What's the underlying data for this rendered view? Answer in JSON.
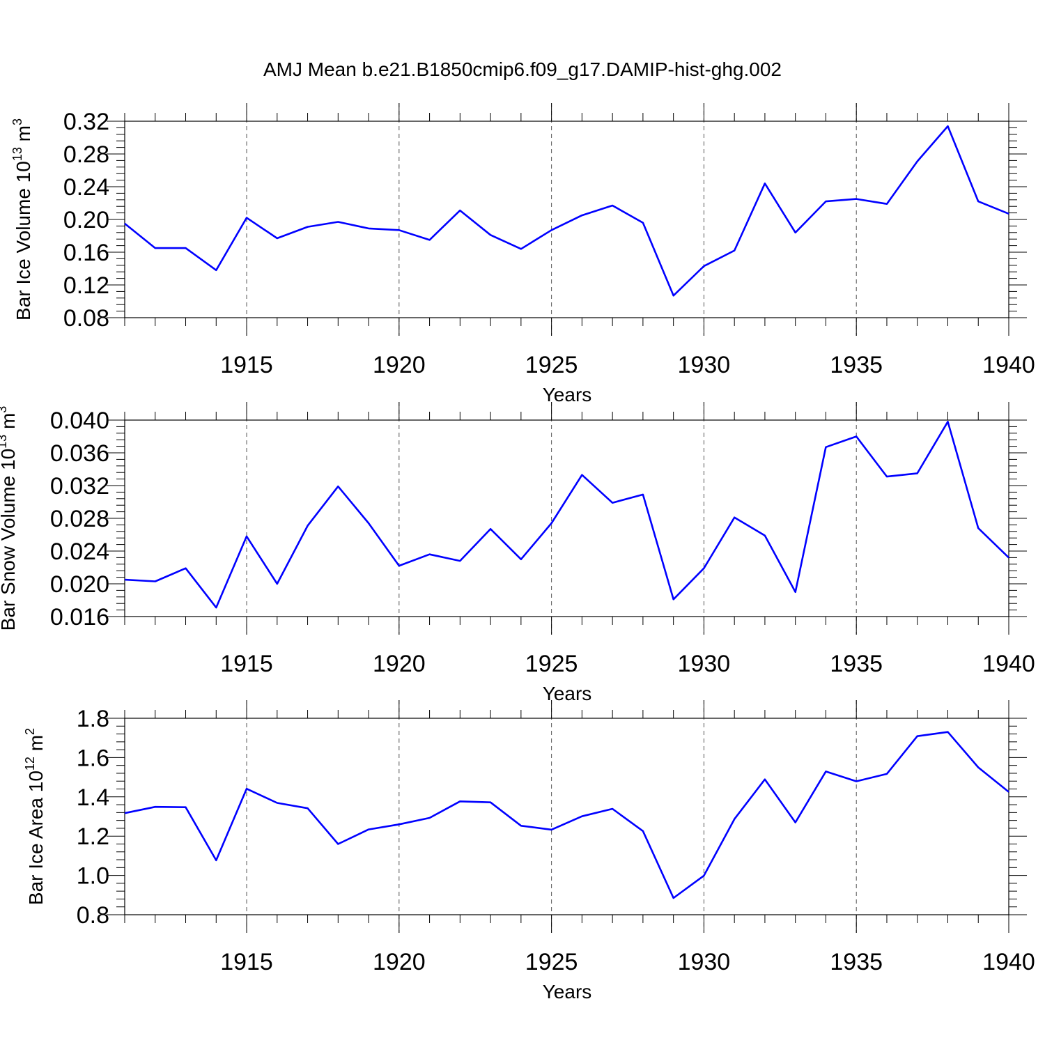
{
  "title": "AMJ Mean b.e21.B1850cmip6.f09_g17.DAMIP-hist-ghg.002",
  "colors": {
    "line": "#0000ff",
    "axis": "#000000",
    "grid": "#555555"
  },
  "chart_data": [
    {
      "type": "line",
      "ylabel": "Bar Ice Volume 10",
      "ylabel_exp": "13",
      "ylabel_unit": " m",
      "ylabel_unit_exp": "3",
      "xlabel": "Years",
      "xlim": [
        1911,
        1940
      ],
      "ylim": [
        0.08,
        0.32
      ],
      "x_ticks": [
        "1915",
        "1920",
        "1925",
        "1930",
        "1935",
        "1940"
      ],
      "y_ticks": [
        "0.08",
        "0.12",
        "0.16",
        "0.20",
        "0.24",
        "0.28",
        "0.32"
      ],
      "series": [
        {
          "name": "Bar Ice Volume",
          "x": [
            1911,
            1912,
            1913,
            1914,
            1915,
            1916,
            1917,
            1918,
            1919,
            1920,
            1921,
            1922,
            1923,
            1924,
            1925,
            1926,
            1927,
            1928,
            1929,
            1930,
            1931,
            1932,
            1933,
            1934,
            1935,
            1936,
            1937,
            1938,
            1939,
            1940
          ],
          "values": [
            0.195,
            0.165,
            0.165,
            0.138,
            0.202,
            0.177,
            0.191,
            0.197,
            0.189,
            0.187,
            0.175,
            0.211,
            0.181,
            0.164,
            0.187,
            0.205,
            0.217,
            0.196,
            0.107,
            0.143,
            0.162,
            0.244,
            0.184,
            0.222,
            0.225,
            0.219,
            0.271,
            0.314,
            0.222,
            0.207
          ]
        }
      ]
    },
    {
      "type": "line",
      "ylabel": "Bar Snow Volume 10",
      "ylabel_exp": "13",
      "ylabel_unit": " m",
      "ylabel_unit_exp": "3",
      "xlabel": "Years",
      "xlim": [
        1911,
        1940
      ],
      "ylim": [
        0.016,
        0.04
      ],
      "x_ticks": [
        "1915",
        "1920",
        "1925",
        "1930",
        "1935",
        "1940"
      ],
      "y_ticks": [
        "0.016",
        "0.020",
        "0.024",
        "0.028",
        "0.032",
        "0.036",
        "0.040"
      ],
      "series": [
        {
          "name": "Bar Snow Volume",
          "x": [
            1911,
            1912,
            1913,
            1914,
            1915,
            1916,
            1917,
            1918,
            1919,
            1920,
            1921,
            1922,
            1923,
            1924,
            1925,
            1926,
            1927,
            1928,
            1929,
            1930,
            1931,
            1932,
            1933,
            1934,
            1935,
            1936,
            1937,
            1938,
            1939,
            1940
          ],
          "values": [
            0.0205,
            0.0203,
            0.0219,
            0.0171,
            0.0258,
            0.02,
            0.0271,
            0.0319,
            0.0274,
            0.0222,
            0.0236,
            0.0228,
            0.0267,
            0.023,
            0.0274,
            0.0333,
            0.0299,
            0.0309,
            0.0181,
            0.0219,
            0.0281,
            0.0259,
            0.019,
            0.0367,
            0.038,
            0.0331,
            0.0335,
            0.0398,
            0.0268,
            0.0232
          ]
        }
      ]
    },
    {
      "type": "line",
      "ylabel": "Bar Ice Area 10",
      "ylabel_exp": "12",
      "ylabel_unit": " m",
      "ylabel_unit_exp": "2",
      "xlabel": "Years",
      "xlim": [
        1911,
        1940
      ],
      "ylim": [
        0.8,
        1.8
      ],
      "x_ticks": [
        "1915",
        "1920",
        "1925",
        "1930",
        "1935",
        "1940"
      ],
      "y_ticks": [
        "0.8",
        "1.0",
        "1.2",
        "1.4",
        "1.6",
        "1.8"
      ],
      "series": [
        {
          "name": "Bar Ice Area",
          "x": [
            1911,
            1912,
            1913,
            1914,
            1915,
            1916,
            1917,
            1918,
            1919,
            1920,
            1921,
            1922,
            1923,
            1924,
            1925,
            1926,
            1927,
            1928,
            1929,
            1930,
            1931,
            1932,
            1933,
            1934,
            1935,
            1936,
            1937,
            1938,
            1939,
            1940
          ],
          "values": [
            1.317,
            1.349,
            1.347,
            1.077,
            1.441,
            1.369,
            1.342,
            1.16,
            1.234,
            1.26,
            1.293,
            1.377,
            1.372,
            1.253,
            1.233,
            1.301,
            1.339,
            1.226,
            0.885,
            0.999,
            1.287,
            1.489,
            1.27,
            1.529,
            1.479,
            1.517,
            1.709,
            1.73,
            1.55,
            1.425
          ]
        }
      ]
    }
  ]
}
